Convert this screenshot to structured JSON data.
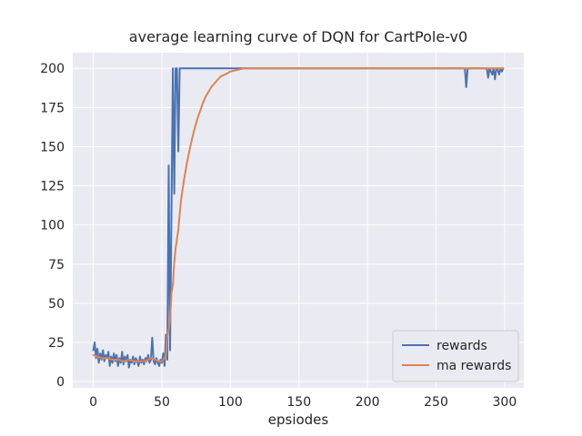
{
  "figure": {
    "background": "#ffffff"
  },
  "chart_data": {
    "type": "line",
    "title": "average learning curve of DQN for CartPole-v0",
    "xlabel": "epsiodes",
    "ylabel": "",
    "xlim": [
      -15,
      314
    ],
    "ylim": [
      -4,
      210
    ],
    "xticks": [
      0,
      50,
      100,
      150,
      200,
      250,
      300
    ],
    "yticks": [
      0,
      25,
      50,
      75,
      100,
      125,
      150,
      175,
      200
    ],
    "grid": true,
    "plot_bg": "#eaeaf2",
    "grid_color": "#ffffff",
    "text_color": "#262626",
    "legend": {
      "position": "lower right",
      "items": [
        "rewards",
        "ma rewards"
      ]
    },
    "series": [
      {
        "name": "rewards",
        "color": "#4c72b0",
        "points": [
          [
            0,
            20
          ],
          [
            1,
            25
          ],
          [
            2,
            15
          ],
          [
            3,
            21
          ],
          [
            4,
            12
          ],
          [
            5,
            18
          ],
          [
            6,
            14
          ],
          [
            7,
            20
          ],
          [
            8,
            13
          ],
          [
            9,
            17
          ],
          [
            10,
            15
          ],
          [
            11,
            19
          ],
          [
            12,
            10
          ],
          [
            13,
            16
          ],
          [
            14,
            12
          ],
          [
            15,
            18
          ],
          [
            16,
            13
          ],
          [
            17,
            17
          ],
          [
            18,
            10
          ],
          [
            19,
            15
          ],
          [
            20,
            12
          ],
          [
            21,
            19
          ],
          [
            22,
            11
          ],
          [
            23,
            16
          ],
          [
            24,
            13
          ],
          [
            25,
            17
          ],
          [
            26,
            9
          ],
          [
            27,
            14
          ],
          [
            28,
            12
          ],
          [
            29,
            16
          ],
          [
            30,
            11
          ],
          [
            31,
            15
          ],
          [
            32,
            13
          ],
          [
            33,
            10
          ],
          [
            34,
            16
          ],
          [
            35,
            12
          ],
          [
            36,
            14
          ],
          [
            37,
            11
          ],
          [
            38,
            15
          ],
          [
            39,
            13
          ],
          [
            40,
            17
          ],
          [
            41,
            12
          ],
          [
            42,
            14
          ],
          [
            43,
            28
          ],
          [
            44,
            13
          ],
          [
            45,
            11
          ],
          [
            46,
            15
          ],
          [
            47,
            12
          ],
          [
            48,
            10
          ],
          [
            49,
            14
          ],
          [
            50,
            12
          ],
          [
            51,
            18
          ],
          [
            52,
            10
          ],
          [
            53,
            30
          ],
          [
            54,
            14
          ],
          [
            55,
            138
          ],
          [
            56,
            20
          ],
          [
            57,
            105
          ],
          [
            58,
            200
          ],
          [
            59,
            120
          ],
          [
            60,
            200
          ],
          [
            61,
            200
          ],
          [
            62,
            147
          ],
          [
            63,
            200
          ],
          [
            64,
            200
          ],
          [
            270,
            200
          ],
          [
            271,
            200
          ],
          [
            272,
            188
          ],
          [
            273,
            200
          ],
          [
            287,
            200
          ],
          [
            288,
            194
          ],
          [
            289,
            200
          ],
          [
            291,
            196
          ],
          [
            292,
            200
          ],
          [
            293,
            193
          ],
          [
            294,
            200
          ],
          [
            295,
            199
          ],
          [
            296,
            196
          ],
          [
            297,
            200
          ],
          [
            298,
            198
          ],
          [
            299,
            200
          ]
        ]
      },
      {
        "name": "ma rewards",
        "color": "#dd8452",
        "points": [
          [
            0,
            17
          ],
          [
            3,
            16
          ],
          [
            6,
            15
          ],
          [
            10,
            15
          ],
          [
            14,
            14
          ],
          [
            18,
            14
          ],
          [
            22,
            13
          ],
          [
            26,
            14
          ],
          [
            30,
            13
          ],
          [
            34,
            13
          ],
          [
            38,
            13
          ],
          [
            42,
            15
          ],
          [
            45,
            14
          ],
          [
            48,
            13
          ],
          [
            50,
            13
          ],
          [
            51,
            14
          ],
          [
            52,
            15
          ],
          [
            53,
            17
          ],
          [
            54,
            29
          ],
          [
            55,
            33
          ],
          [
            56,
            40
          ],
          [
            57,
            56
          ],
          [
            58,
            62
          ],
          [
            59,
            76
          ],
          [
            60,
            85
          ],
          [
            61,
            91
          ],
          [
            62,
            97
          ],
          [
            63,
            107
          ],
          [
            64,
            116
          ],
          [
            66,
            128
          ],
          [
            68,
            138
          ],
          [
            70,
            147
          ],
          [
            72,
            155
          ],
          [
            74,
            162
          ],
          [
            76,
            168
          ],
          [
            78,
            173
          ],
          [
            80,
            178
          ],
          [
            82,
            182
          ],
          [
            84,
            185
          ],
          [
            86,
            188
          ],
          [
            88,
            190
          ],
          [
            90,
            192
          ],
          [
            93,
            195
          ],
          [
            96,
            196
          ],
          [
            100,
            198
          ],
          [
            105,
            199
          ],
          [
            110,
            200
          ],
          [
            150,
            200
          ],
          [
            200,
            200
          ],
          [
            250,
            200
          ],
          [
            299,
            200
          ]
        ]
      }
    ]
  }
}
